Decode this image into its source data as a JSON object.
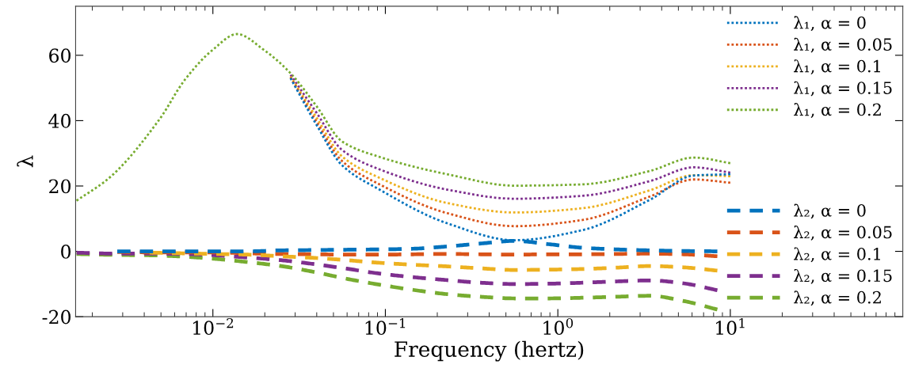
{
  "chart_data": {
    "type": "line",
    "xlabel": "Frequency (hertz)",
    "ylabel": "λ",
    "log": "x",
    "grid": false,
    "legend": "right",
    "marker": "none",
    "xlim": [
      0.0016,
      100
    ],
    "xticks": [
      {
        "value": 0.01,
        "label": "10$^{−2}$"
      },
      {
        "value": 0.1,
        "label": "10$^{−1}$"
      },
      {
        "value": 1,
        "label": "10$^{0}$"
      },
      {
        "value": 10,
        "label": "10$^{1}$"
      }
    ],
    "ylim": [
      -20,
      75
    ],
    "yticks": [
      -20,
      0,
      20,
      40,
      60
    ],
    "series": [
      {
        "name": "λ₁, α = 0",
        "color": "#0072bd",
        "line_style": "dotted",
        "x": [
          0.0282,
          0.0398,
          0.0562,
          0.0925,
          0.228,
          0.562,
          1.39,
          3.42,
          6.14,
          10
        ],
        "values": [
          53.0,
          38.8,
          26.3,
          18.9,
          8.6,
          3.4,
          6.5,
          15.8,
          23.2,
          23.6
        ]
      },
      {
        "name": "λ₁, α = 0.05",
        "color": "#d95319",
        "line_style": "dotted",
        "x": [
          0.0282,
          0.0398,
          0.0562,
          0.0925,
          0.228,
          0.562,
          1.39,
          3.42,
          6.14,
          10
        ],
        "values": [
          53.2,
          39.8,
          27.6,
          20.5,
          11.7,
          7.7,
          9.6,
          16.8,
          22.0,
          21.0
        ]
      },
      {
        "name": "λ₁, α = 0.1",
        "color": "#edb120",
        "line_style": "dotted",
        "x": [
          0.0282,
          0.0398,
          0.0562,
          0.0925,
          0.228,
          0.562,
          1.39,
          3.42,
          6.14,
          10
        ],
        "values": [
          53.5,
          41.0,
          29.0,
          22.5,
          14.8,
          11.9,
          13.2,
          18.7,
          23.3,
          23.0
        ]
      },
      {
        "name": "λ₁, α = 0.15",
        "color": "#7e2f8e",
        "line_style": "dotted",
        "x": [
          0.0282,
          0.0398,
          0.0562,
          0.0925,
          0.228,
          0.562,
          1.39,
          3.42,
          6.14,
          10
        ],
        "values": [
          54.0,
          42.5,
          31.0,
          25.1,
          18.9,
          16.1,
          17.0,
          21.5,
          25.7,
          24.1
        ]
      },
      {
        "name": "λ₁, α = 0.2",
        "color": "#77ac30",
        "line_style": "dotted",
        "x": [
          0.00162,
          0.00251,
          0.0049,
          0.0069,
          0.01,
          0.0138,
          0.0197,
          0.0282,
          0.0398,
          0.0562,
          0.0925,
          0.228,
          0.562,
          1.39,
          3.42,
          6.14,
          10
        ],
        "values": [
          15.5,
          22.5,
          40.4,
          52.6,
          61.7,
          66.5,
          61.7,
          54.5,
          44.5,
          33.6,
          28.9,
          23.6,
          20.1,
          20.5,
          24.6,
          28.7,
          27.0
        ]
      },
      {
        "name": "λ₂, α = 0",
        "color": "#0072bd",
        "line_style": "dashed",
        "x": [
          0.00279,
          0.0043,
          0.00667,
          0.01038,
          0.016,
          0.0248,
          0.0386,
          0.0597,
          0.0925,
          0.145,
          0.228,
          0.357,
          0.562,
          0.883,
          1.39,
          2.18,
          3.42,
          5.37,
          8.41
        ],
        "values": [
          0,
          0,
          0,
          0,
          0,
          0.3,
          0.4,
          0.5,
          0.6,
          0.8,
          1.5,
          2.4,
          3.2,
          2.2,
          1.1,
          0.6,
          0.3,
          0.1,
          0
        ]
      },
      {
        "name": "λ₂, α = 0.05",
        "color": "#d95319",
        "line_style": "dashed",
        "x": [
          0.00279,
          0.0043,
          0.00667,
          0.01038,
          0.016,
          0.0248,
          0.0386,
          0.0597,
          0.0925,
          0.145,
          0.228,
          0.357,
          0.562,
          0.883,
          1.39,
          2.18,
          3.42,
          5.37,
          8.41
        ],
        "values": [
          -0.2,
          -0.3,
          -0.3,
          -0.3,
          -0.6,
          -0.8,
          -0.9,
          -1.0,
          -1.0,
          -0.9,
          -0.8,
          -0.9,
          -1.0,
          -0.9,
          -0.9,
          -0.8,
          -0.7,
          -0.9,
          -1.5
        ]
      },
      {
        "name": "λ₂, α = 0.1",
        "color": "#edb120",
        "line_style": "dashed",
        "x": [
          0.0043,
          0.00667,
          0.01038,
          0.016,
          0.0248,
          0.0386,
          0.0597,
          0.0925,
          0.145,
          0.228,
          0.357,
          0.562,
          0.883,
          1.39,
          2.18,
          3.42,
          5.37,
          8.41
        ],
        "values": [
          -0.4,
          -0.6,
          -0.8,
          -1.0,
          -1.5,
          -2.0,
          -2.7,
          -3.5,
          -4.1,
          -4.6,
          -5.2,
          -5.7,
          -5.6,
          -5.4,
          -5.0,
          -4.5,
          -4.9,
          -5.9
        ]
      },
      {
        "name": "λ₂, α = 0.15",
        "color": "#7e2f8e",
        "line_style": "dashed",
        "x": [
          0.00162,
          0.00279,
          0.0043,
          0.00667,
          0.01038,
          0.016,
          0.0248,
          0.0386,
          0.0597,
          0.0925,
          0.145,
          0.228,
          0.357,
          0.562,
          0.883,
          1.39,
          2.18,
          3.42,
          5.37,
          8.41
        ],
        "values": [
          -0.4,
          -0.7,
          -0.7,
          -0.8,
          -1.2,
          -1.9,
          -2.7,
          -3.9,
          -5.3,
          -6.8,
          -7.9,
          -8.8,
          -9.6,
          -10.0,
          -9.9,
          -9.6,
          -9.2,
          -8.9,
          -9.8,
          -11.9
        ]
      },
      {
        "name": "λ₂, α = 0.2",
        "color": "#77ac30",
        "line_style": "dashed",
        "x": [
          0.00162,
          0.00279,
          0.0043,
          0.00667,
          0.01038,
          0.016,
          0.0248,
          0.0386,
          0.0597,
          0.0925,
          0.145,
          0.228,
          0.357,
          0.562,
          0.883,
          1.39,
          2.18,
          3.42,
          5.37,
          8.41
        ],
        "values": [
          -0.8,
          -1.1,
          -1.2,
          -1.6,
          -2.3,
          -3.3,
          -4.5,
          -6.3,
          -8.4,
          -10.2,
          -11.8,
          -13.1,
          -13.9,
          -14.4,
          -14.4,
          -14.2,
          -13.9,
          -13.6,
          -15.2,
          -17.8
        ]
      }
    ]
  }
}
